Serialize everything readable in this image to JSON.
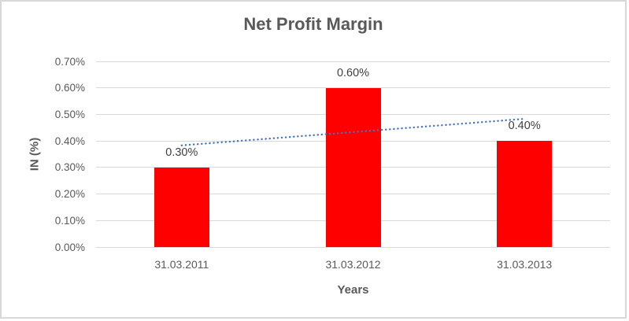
{
  "chart_data": {
    "type": "bar",
    "title": "Net Profit Margin",
    "categories": [
      "31.03.2011",
      "31.03.2012",
      "31.03.2013"
    ],
    "values": [
      0.3,
      0.6,
      0.4
    ],
    "unit": "%",
    "data_labels": [
      "0.30%",
      "0.60%",
      "0.40%"
    ],
    "xlabel": "Years",
    "ylabel": "IN (%)",
    "ylim": [
      0,
      0.7
    ],
    "ytick_step": 0.1,
    "ytick_labels": [
      "0.00%",
      "0.10%",
      "0.20%",
      "0.30%",
      "0.40%",
      "0.50%",
      "0.60%",
      "0.70%"
    ],
    "grid": true,
    "legend": "none",
    "trendline": {
      "type": "linear",
      "style": "dotted"
    },
    "colors": {
      "bar": "#ff0000",
      "trendline": "#4472c4",
      "gridline": "#d9d9d9",
      "axis_text": "#595959",
      "title_text": "#595959",
      "data_label_text": "#3f3f3f",
      "frame_border": "#d8d8d8",
      "background": "#ffffff"
    }
  }
}
